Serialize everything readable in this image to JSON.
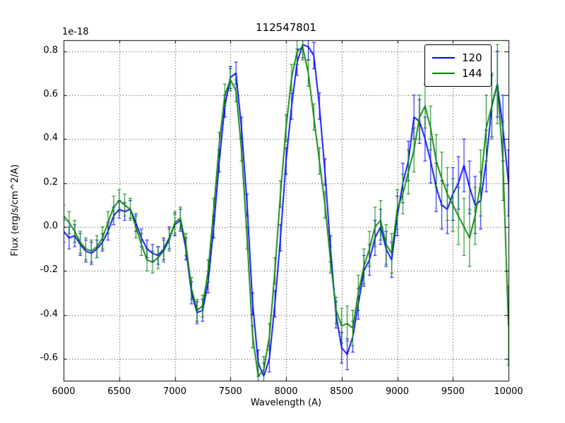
{
  "chart_data": {
    "type": "line",
    "title": "112547801",
    "xlabel": "Wavelength (A)",
    "ylabel": "Flux (erg/s/cm^2/A)",
    "y_offset_text": "1e-18",
    "xlim": [
      6000,
      10000
    ],
    "ylim": [
      -0.7,
      0.85
    ],
    "grid": true,
    "grid_style": "dotted",
    "legend_position": "upper right",
    "xticks": [
      6000,
      6500,
      7000,
      7500,
      8000,
      8500,
      9000,
      9500,
      10000
    ],
    "xtick_labels": [
      "6000",
      "6500",
      "7000",
      "7500",
      "8000",
      "8500",
      "9000",
      "9500",
      "10000"
    ],
    "yticks": [
      -0.6,
      -0.4,
      -0.2,
      0.0,
      0.2,
      0.4,
      0.6,
      0.8
    ],
    "ytick_labels": [
      "-0.6",
      "-0.4",
      "-0.2",
      "0.0",
      "0.2",
      "0.4",
      "0.6",
      "0.8"
    ],
    "x": [
      6000,
      6050,
      6100,
      6150,
      6200,
      6250,
      6300,
      6350,
      6400,
      6450,
      6500,
      6550,
      6600,
      6650,
      6700,
      6750,
      6800,
      6850,
      6900,
      6950,
      7000,
      7050,
      7100,
      7150,
      7200,
      7250,
      7300,
      7350,
      7400,
      7450,
      7500,
      7550,
      7600,
      7650,
      7700,
      7750,
      7800,
      7850,
      7900,
      7950,
      8000,
      8050,
      8100,
      8150,
      8200,
      8250,
      8300,
      8350,
      8400,
      8450,
      8500,
      8550,
      8600,
      8650,
      8700,
      8750,
      8800,
      8850,
      8900,
      8950,
      9000,
      9050,
      9100,
      9150,
      9200,
      9250,
      9300,
      9350,
      9400,
      9450,
      9500,
      9550,
      9600,
      9650,
      9700,
      9750,
      9800,
      9850,
      9900,
      9950,
      10000
    ],
    "series": [
      {
        "name": "120",
        "color": "#0000ff",
        "values": [
          -0.02,
          -0.05,
          -0.04,
          -0.08,
          -0.11,
          -0.12,
          -0.1,
          -0.07,
          -0.02,
          0.05,
          0.08,
          0.07,
          0.08,
          0.02,
          -0.05,
          -0.1,
          -0.12,
          -0.13,
          -0.1,
          -0.05,
          0.01,
          0.03,
          -0.1,
          -0.3,
          -0.39,
          -0.38,
          -0.25,
          0,
          0.3,
          0.55,
          0.68,
          0.7,
          0.45,
          0.1,
          -0.35,
          -0.62,
          -0.68,
          -0.6,
          -0.35,
          -0.05,
          0.3,
          0.55,
          0.75,
          0.83,
          0.82,
          0.78,
          0.55,
          0.25,
          -0.1,
          -0.4,
          -0.55,
          -0.58,
          -0.5,
          -0.35,
          -0.2,
          -0.15,
          -0.05,
          0,
          -0.1,
          -0.15,
          0.05,
          0.2,
          0.3,
          0.5,
          0.48,
          0.4,
          0.3,
          0.18,
          0.1,
          0.08,
          0.15,
          0.2,
          0.28,
          0.18,
          0.1,
          0.12,
          0.3,
          0.55,
          0.65,
          0.45,
          0.2
        ],
        "yerr": [
          0.05,
          0.05,
          0.05,
          0.05,
          0.05,
          0.05,
          0.04,
          0.04,
          0.04,
          0.04,
          0.04,
          0.04,
          0.04,
          0.04,
          0.04,
          0.04,
          0.04,
          0.04,
          0.05,
          0.05,
          0.05,
          0.05,
          0.05,
          0.05,
          0.05,
          0.05,
          0.05,
          0.05,
          0.05,
          0.05,
          0.05,
          0.05,
          0.05,
          0.05,
          0.05,
          0.06,
          0.06,
          0.06,
          0.06,
          0.06,
          0.06,
          0.06,
          0.06,
          0.06,
          0.06,
          0.06,
          0.06,
          0.06,
          0.06,
          0.06,
          0.07,
          0.07,
          0.07,
          0.07,
          0.07,
          0.07,
          0.08,
          0.08,
          0.08,
          0.08,
          0.09,
          0.09,
          0.09,
          0.1,
          0.1,
          0.1,
          0.1,
          0.11,
          0.11,
          0.11,
          0.12,
          0.12,
          0.12,
          0.12,
          0.13,
          0.13,
          0.14,
          0.14,
          0.15,
          0.15,
          0.15
        ]
      },
      {
        "name": "144",
        "color": "#008000",
        "values": [
          0.05,
          0.02,
          -0.02,
          -0.07,
          -0.1,
          -0.11,
          -0.09,
          -0.05,
          0.02,
          0.09,
          0.12,
          0.1,
          0.08,
          0,
          -0.08,
          -0.15,
          -0.16,
          -0.14,
          -0.11,
          -0.06,
          0.02,
          0.04,
          -0.08,
          -0.28,
          -0.38,
          -0.36,
          -0.2,
          0.08,
          0.38,
          0.6,
          0.67,
          0.62,
          0.35,
          -0.05,
          -0.5,
          -0.68,
          -0.65,
          -0.5,
          -0.2,
          0.15,
          0.45,
          0.68,
          0.8,
          0.82,
          0.7,
          0.5,
          0.3,
          0.1,
          -0.15,
          -0.38,
          -0.45,
          -0.44,
          -0.46,
          -0.3,
          -0.18,
          -0.1,
          0,
          0.03,
          -0.08,
          -0.12,
          0.08,
          0.15,
          0.25,
          0.35,
          0.5,
          0.55,
          0.45,
          0.3,
          0.22,
          0.15,
          0.1,
          0.05,
          0,
          -0.05,
          0.05,
          0.2,
          0.45,
          0.55,
          0.65,
          0.3,
          -0.45
        ],
        "yerr": [
          0.05,
          0.05,
          0.05,
          0.05,
          0.05,
          0.05,
          0.05,
          0.05,
          0.05,
          0.05,
          0.05,
          0.05,
          0.05,
          0.05,
          0.05,
          0.05,
          0.05,
          0.05,
          0.05,
          0.05,
          0.05,
          0.05,
          0.05,
          0.05,
          0.05,
          0.05,
          0.05,
          0.05,
          0.05,
          0.05,
          0.05,
          0.05,
          0.05,
          0.05,
          0.05,
          0.06,
          0.06,
          0.06,
          0.06,
          0.06,
          0.06,
          0.06,
          0.06,
          0.06,
          0.06,
          0.06,
          0.06,
          0.06,
          0.06,
          0.06,
          0.08,
          0.08,
          0.08,
          0.08,
          0.08,
          0.08,
          0.09,
          0.09,
          0.09,
          0.09,
          0.09,
          0.09,
          0.1,
          0.1,
          0.1,
          0.1,
          0.1,
          0.12,
          0.12,
          0.12,
          0.12,
          0.13,
          0.13,
          0.13,
          0.13,
          0.15,
          0.15,
          0.15,
          0.18,
          0.18,
          0.18
        ]
      }
    ]
  }
}
